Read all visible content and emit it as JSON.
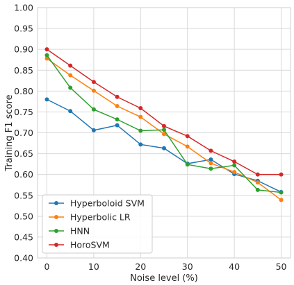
{
  "chart_data": {
    "type": "line",
    "title": "",
    "xlabel": "Noise level (%)",
    "ylabel": "Training F1 score",
    "xlim": [
      -2,
      52
    ],
    "ylim": [
      0.4,
      1.0
    ],
    "x_ticks": [
      0,
      10,
      20,
      30,
      40,
      50
    ],
    "y_ticks": [
      0.4,
      0.45,
      0.5,
      0.55,
      0.6,
      0.65,
      0.7,
      0.75,
      0.8,
      0.85,
      0.9,
      0.95,
      1.0
    ],
    "grid": true,
    "legend_position": "lower-left",
    "x": [
      0,
      5,
      10,
      15,
      20,
      25,
      30,
      35,
      40,
      45,
      50
    ],
    "series": [
      {
        "name": "Hyperboloid SVM",
        "color": "#1f77b4",
        "values": [
          0.78,
          0.752,
          0.706,
          0.718,
          0.672,
          0.663,
          0.626,
          0.636,
          0.601,
          0.585,
          0.558
        ]
      },
      {
        "name": "Hyperbolic LR",
        "color": "#ff7f0e",
        "values": [
          0.878,
          0.838,
          0.801,
          0.764,
          0.738,
          0.697,
          0.667,
          0.627,
          0.606,
          0.581,
          0.539
        ]
      },
      {
        "name": "HNN",
        "color": "#2ca02c",
        "values": [
          0.886,
          0.808,
          0.756,
          0.732,
          0.705,
          0.707,
          0.624,
          0.614,
          0.622,
          0.563,
          0.557
        ]
      },
      {
        "name": "HoroSVM",
        "color": "#d62728",
        "values": [
          0.9,
          0.861,
          0.822,
          0.786,
          0.759,
          0.716,
          0.692,
          0.657,
          0.631,
          0.6,
          0.6
        ]
      }
    ]
  }
}
